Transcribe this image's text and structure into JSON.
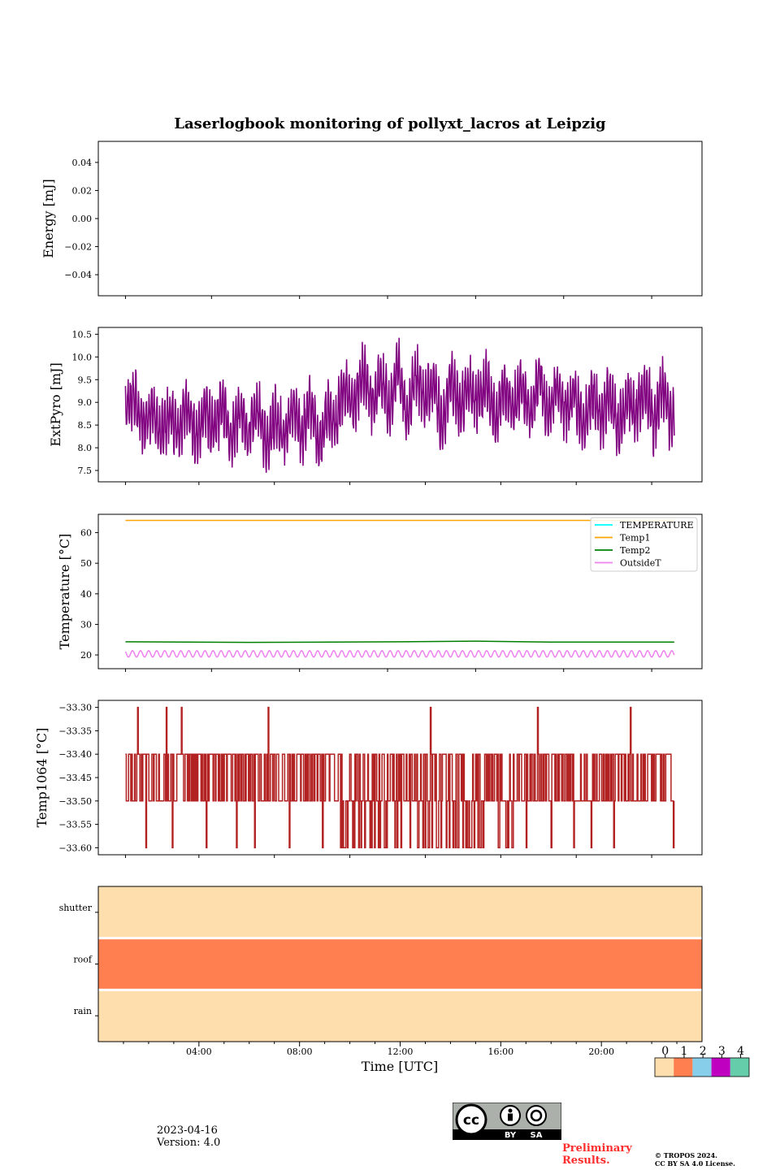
{
  "figure": {
    "title": "Laserlogbook monitoring of pollyxt_lacros at Leipzig",
    "xlabel": "Time [UTC]",
    "x_tick_labels": [
      "04:00",
      "08:00",
      "12:00",
      "16:00",
      "20:00"
    ],
    "x_range_hours": [
      0,
      24
    ],
    "data_range_hours": [
      1.08,
      22.9
    ]
  },
  "chart_data": [
    {
      "type": "line",
      "ylabel": "Energy [mJ]",
      "ylim": [
        -0.055,
        0.055
      ],
      "yticks": [
        0.04,
        0.02,
        0.0,
        -0.02,
        -0.04
      ],
      "ytick_labels": [
        "0.04",
        "0.02",
        "0.00",
        "−0.02",
        "−0.04"
      ],
      "series": []
    },
    {
      "type": "line",
      "ylabel": "ExtPyro [mJ]",
      "ylim": [
        7.25,
        10.65
      ],
      "yticks": [
        10.5,
        10.0,
        9.5,
        9.0,
        8.5,
        8.0,
        7.5
      ],
      "ytick_labels": [
        "10.5",
        "10.0",
        "9.5",
        "9.0",
        "8.5",
        "8.0",
        "7.5"
      ],
      "series": [
        {
          "color": "#800080",
          "x": [
            1.08,
            1.43,
            1.78,
            2.13,
            2.48,
            2.83,
            3.18,
            3.53,
            3.88,
            4.23,
            4.58,
            4.93,
            5.28,
            5.63,
            5.98,
            6.33,
            6.68,
            7.03,
            7.38,
            7.73,
            8.08,
            8.43,
            8.78,
            9.13,
            9.48,
            9.83,
            10.18,
            10.53,
            10.88,
            11.23,
            11.58,
            11.93,
            12.28,
            12.63,
            12.98,
            13.33,
            13.68,
            14.03,
            14.38,
            14.73,
            15.08,
            15.43,
            15.78,
            16.13,
            16.48,
            16.83,
            17.18,
            17.53,
            17.88,
            18.23,
            18.58,
            18.93,
            19.28,
            19.63,
            19.98,
            20.33,
            20.68,
            21.03,
            21.38,
            21.73,
            22.08,
            22.43,
            22.78,
            22.9
          ],
          "y": [
            9.0,
            9.7,
            8.3,
            9.3,
            7.9,
            9.0,
            8.0,
            9.5,
            7.7,
            9.2,
            8.1,
            9.4,
            7.8,
            9.1,
            7.9,
            9.3,
            7.5,
            9.0,
            7.8,
            9.2,
            8.0,
            9.4,
            7.6,
            9.1,
            8.3,
            9.6,
            8.6,
            10.2,
            8.7,
            10.0,
            8.5,
            10.5,
            8.2,
            10.3,
            8.9,
            10.0,
            7.7,
            10.1,
            8.4,
            9.9,
            8.7,
            9.8,
            8.0,
            9.6,
            8.5,
            9.7,
            8.2,
            10.3,
            8.1,
            9.7,
            8.3,
            9.5,
            7.7,
            9.4,
            8.0,
            9.5,
            7.7,
            9.2,
            8.2,
            9.6,
            8.4,
            10.2,
            8.5,
            8.7
          ]
        }
      ]
    },
    {
      "type": "line",
      "ylabel": "Temperature [°C]",
      "ylim": [
        15.5,
        66
      ],
      "yticks": [
        60,
        50,
        40,
        30,
        20
      ],
      "ytick_labels": [
        "60",
        "50",
        "40",
        "30",
        "20"
      ],
      "legend_position": "top-right",
      "series": [
        {
          "name": "TEMPERATURE",
          "color": "#00ffff",
          "values": []
        },
        {
          "name": "Temp1",
          "color": "#ffa500",
          "x": [
            1.08,
            22.9
          ],
          "y": [
            64.0,
            64.0
          ]
        },
        {
          "name": "Temp2",
          "color": "#008000",
          "x": [
            1.08,
            6.0,
            12.0,
            15.0,
            18.0,
            22.9
          ],
          "y": [
            24.3,
            24.1,
            24.3,
            24.5,
            24.2,
            24.2
          ]
        },
        {
          "name": "OutsideT",
          "color": "#ee82ee",
          "oscillation": {
            "min": 19.3,
            "max": 21.4,
            "period_hours": 0.32
          },
          "x": [
            1.08,
            22.9
          ],
          "y": [
            19.5,
            19.5
          ]
        }
      ]
    },
    {
      "type": "line",
      "ylabel": "Temp1064 [°C]",
      "ylim": [
        -33.615,
        -33.285
      ],
      "yticks": [
        -33.3,
        -33.35,
        -33.4,
        -33.45,
        -33.5,
        -33.55,
        -33.6
      ],
      "ytick_labels": [
        "−33.30",
        "−33.35",
        "−33.40",
        "−33.45",
        "−33.50",
        "−33.55",
        "−33.60"
      ],
      "series": [
        {
          "color": "#b22222",
          "spikes_x": [
            1.55,
            2.7,
            3.3,
            6.75,
            13.2,
            17.45,
            21.15
          ],
          "spike_value": -33.3,
          "dips_x": [
            1.9,
            2.95,
            4.3,
            5.5,
            6.2,
            7.6,
            8.9,
            9.9,
            10.6,
            11.2,
            11.8,
            12.4,
            12.9,
            13.5,
            14.1,
            14.6,
            15.2,
            15.9,
            16.3,
            17.0,
            18.0,
            18.9,
            19.6,
            20.5,
            22.85
          ],
          "dip_value": -33.6,
          "segments": [
            {
              "from": 1.08,
              "to": 3.5,
              "levels": [
                -33.4,
                -33.5
              ]
            },
            {
              "from": 3.5,
              "to": 9.5,
              "levels": [
                -33.4,
                -33.5
              ]
            },
            {
              "from": 9.5,
              "to": 16.5,
              "levels": [
                -33.5,
                -33.4,
                -33.6
              ]
            },
            {
              "from": 16.5,
              "to": 22.9,
              "levels": [
                -33.5,
                -33.4
              ]
            }
          ]
        }
      ]
    },
    {
      "type": "heatmap",
      "rows": [
        "shutter",
        "roof",
        "rain"
      ],
      "row_values": [
        0,
        1,
        0
      ],
      "colormap": {
        "values": [
          0,
          1,
          2,
          3,
          4
        ],
        "tick_labels": [
          "0",
          "1",
          "2",
          "3",
          "4"
        ],
        "colors": [
          "#ffdead",
          "#ff7f50",
          "#87ceeb",
          "#c000c0",
          "#66cdaa"
        ]
      }
    }
  ],
  "footer": {
    "date": "2023-04-16",
    "version": "Version: 4.0",
    "preliminary": "Preliminary Results.",
    "copyright_line1": "© TROPOS 2024.",
    "copyright_line2": "CC BY SA 4.0 License.",
    "cc_label_by": "BY",
    "cc_label_sa": "SA",
    "cc_label_cc": "cc"
  }
}
